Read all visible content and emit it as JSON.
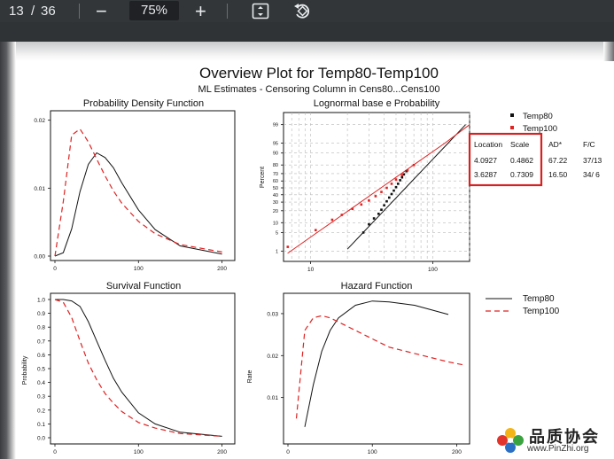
{
  "toolbar": {
    "page_current": "13",
    "page_sep": "/",
    "page_total": "36",
    "zoom_out_symbol": "−",
    "zoom_level": "75%",
    "zoom_in_symbol": "+",
    "icons": [
      "fit-page-icon",
      "rotate-icon"
    ]
  },
  "figure": {
    "title": "Overview Plot for Temp80-Temp100",
    "subtitle": "ML Estimates - Censoring Column in Cens80...Cens100",
    "panels": {
      "pdf": {
        "title": "Probability Density Function",
        "yticks": [
          "0.02",
          "0.01",
          "0.00"
        ],
        "xticks": [
          "0",
          "100",
          "200"
        ]
      },
      "prob": {
        "title": "Lognormal base e Probability",
        "ylabel": "Percent",
        "yticks": [
          "99",
          "95",
          "90",
          "80",
          "70",
          "60",
          "50",
          "40",
          "30",
          "20",
          "10",
          "5",
          "1"
        ],
        "xticks": [
          "10",
          "100"
        ]
      },
      "survival": {
        "title": "Survival Function",
        "ylabel": "Probability",
        "yticks": [
          "1.0",
          "0.9",
          "0.8",
          "0.7",
          "0.6",
          "0.5",
          "0.4",
          "0.3",
          "0.2",
          "0.1",
          "0.0"
        ],
        "xticks": [
          "0",
          "100",
          "200"
        ]
      },
      "hazard": {
        "title": "Hazard Function",
        "ylabel": "Rate",
        "yticks": [
          "0.03",
          "0.02",
          "0.01"
        ],
        "xticks": [
          "0",
          "100",
          "200"
        ]
      }
    },
    "stats_legend": {
      "series": [
        "Temp80",
        "Temp100"
      ],
      "headers": [
        "Location",
        "Scale",
        "AD*",
        "F/C"
      ],
      "rows": [
        [
          "4.0927",
          "0.4862",
          "67.22",
          "37/13"
        ],
        [
          "3.6287",
          "0.7309",
          "16.50",
          "34/ 6"
        ]
      ],
      "highlight_color": "#d42121"
    },
    "line_legend": {
      "series": [
        "Temp80",
        "Temp100"
      ]
    },
    "colors": {
      "temp80": "#111111",
      "temp100": "#e02222"
    }
  },
  "watermark": {
    "text_cn": "品质协会",
    "url": "www.PinZhi.org"
  },
  "chart_data": [
    {
      "type": "line",
      "title": "Probability Density Function",
      "x": [
        0,
        10,
        20,
        30,
        40,
        50,
        60,
        70,
        80,
        100,
        120,
        150,
        200
      ],
      "series": [
        {
          "name": "Temp80",
          "values": [
            0,
            0.0005,
            0.004,
            0.0095,
            0.0135,
            0.0152,
            0.0145,
            0.013,
            0.0108,
            0.0068,
            0.0039,
            0.0015,
            0.0003
          ]
        },
        {
          "name": "Temp100",
          "values": [
            0,
            0.008,
            0.0178,
            0.0187,
            0.0168,
            0.0143,
            0.0118,
            0.0096,
            0.0078,
            0.0051,
            0.0033,
            0.0017,
            0.0006
          ]
        }
      ],
      "xlim": [
        0,
        210
      ],
      "ylim": [
        0,
        0.021
      ]
    },
    {
      "type": "scatter",
      "title": "Lognormal base e Probability",
      "ylabel": "Percent",
      "x_scale": "log",
      "xlim": [
        6,
        200
      ],
      "ylim": [
        1,
        99
      ],
      "series": [
        {
          "name": "Temp80",
          "points": [
            [
              27,
              5
            ],
            [
              30,
              9
            ],
            [
              33,
              13
            ],
            [
              36,
              17
            ],
            [
              38,
              21
            ],
            [
              40,
              26
            ],
            [
              42,
              31
            ],
            [
              44,
              36
            ],
            [
              46,
              41
            ],
            [
              48,
              46
            ],
            [
              50,
              51
            ],
            [
              52,
              56
            ],
            [
              54,
              61
            ],
            [
              56,
              65
            ],
            [
              58,
              69
            ],
            [
              61,
              73
            ]
          ]
        },
        {
          "name": "Temp100",
          "points": [
            [
              6.5,
              1.5
            ],
            [
              11,
              6
            ],
            [
              15,
              12
            ],
            [
              18,
              16
            ],
            [
              22,
              22
            ],
            [
              26,
              27
            ],
            [
              30,
              32
            ],
            [
              34,
              38
            ],
            [
              38,
              44
            ],
            [
              42,
              50
            ],
            [
              46,
              56
            ],
            [
              50,
              62
            ],
            [
              56,
              68
            ],
            [
              62,
              74
            ],
            [
              70,
              80
            ]
          ]
        }
      ]
    },
    {
      "type": "line",
      "title": "Survival Function",
      "ylabel": "Probability",
      "x": [
        0,
        10,
        20,
        30,
        40,
        50,
        60,
        70,
        80,
        100,
        120,
        150,
        200
      ],
      "series": [
        {
          "name": "Temp80",
          "values": [
            1.0,
            1.0,
            0.99,
            0.95,
            0.84,
            0.7,
            0.56,
            0.43,
            0.33,
            0.18,
            0.1,
            0.04,
            0.01
          ]
        },
        {
          "name": "Temp100",
          "values": [
            1.0,
            0.98,
            0.87,
            0.7,
            0.54,
            0.42,
            0.32,
            0.25,
            0.19,
            0.11,
            0.07,
            0.03,
            0.01
          ]
        }
      ],
      "xlim": [
        0,
        210
      ],
      "ylim": [
        0,
        1
      ]
    },
    {
      "type": "line",
      "title": "Hazard Function",
      "ylabel": "Rate",
      "x": [
        10,
        20,
        30,
        40,
        50,
        60,
        80,
        100,
        120,
        150,
        190,
        210
      ],
      "series": [
        {
          "name": "Temp80",
          "values": [
            null,
            0.003,
            0.013,
            0.021,
            0.026,
            0.029,
            0.032,
            0.033,
            0.0328,
            0.032,
            0.0298,
            null
          ]
        },
        {
          "name": "Temp100",
          "values": [
            0.005,
            0.026,
            0.029,
            0.0295,
            0.029,
            0.028,
            0.026,
            0.024,
            0.022,
            0.0205,
            0.0185,
            0.0177
          ]
        }
      ],
      "xlim": [
        0,
        210
      ],
      "ylim": [
        0,
        0.034
      ]
    }
  ]
}
